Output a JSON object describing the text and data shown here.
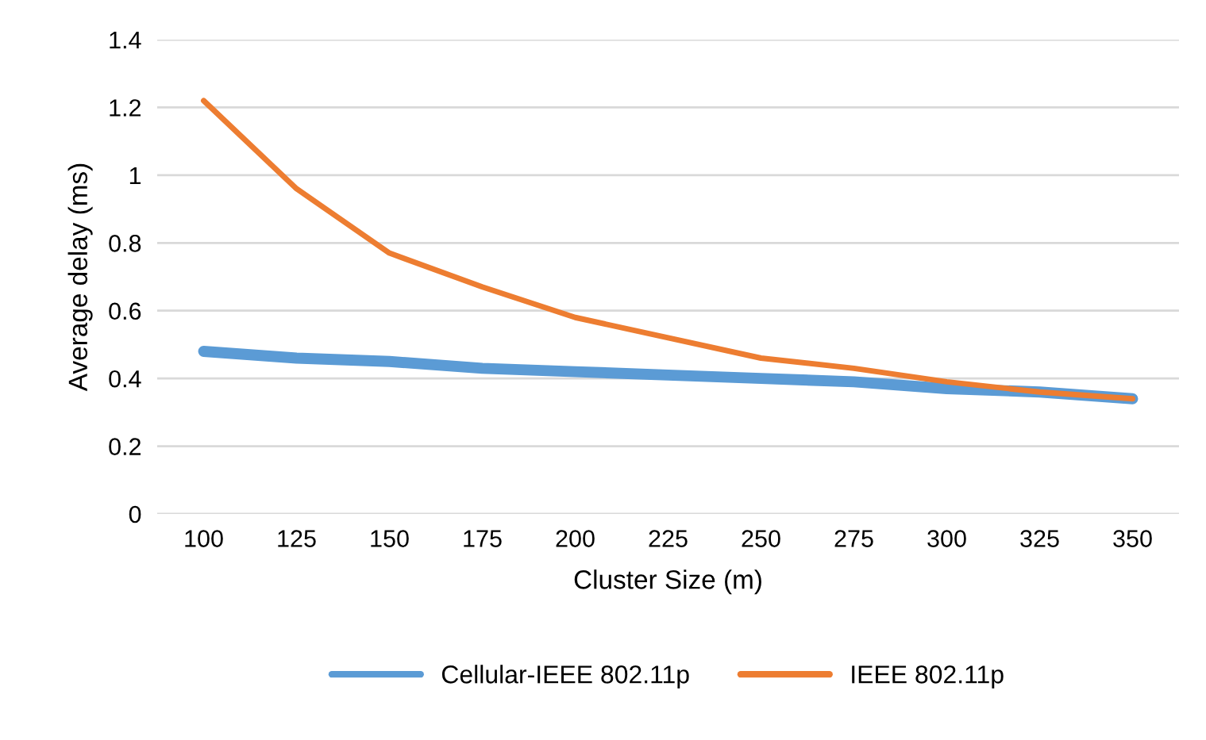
{
  "chart_data": {
    "type": "line",
    "xlabel": "Cluster Size (m)",
    "ylabel": "Average delay (ms)",
    "categories": [
      "100",
      "125",
      "150",
      "175",
      "200",
      "225",
      "250",
      "275",
      "300",
      "325",
      "350"
    ],
    "series": [
      {
        "name": "Cellular-IEEE 802.11p",
        "color": "#5b9bd5",
        "values": [
          0.48,
          0.46,
          0.45,
          0.43,
          0.42,
          0.41,
          0.4,
          0.39,
          0.37,
          0.36,
          0.34
        ]
      },
      {
        "name": "IEEE 802.11p",
        "color": "#ed7d31",
        "values": [
          1.22,
          0.96,
          0.77,
          0.67,
          0.58,
          0.52,
          0.46,
          0.43,
          0.39,
          0.36,
          0.34
        ]
      }
    ],
    "ylim": [
      0,
      1.4
    ],
    "yticks": [
      0,
      0.2,
      0.4,
      0.6,
      0.8,
      1,
      1.2,
      1.4
    ],
    "grid": "y",
    "legend": "bottom",
    "marker": "none",
    "line_style": "solid"
  }
}
